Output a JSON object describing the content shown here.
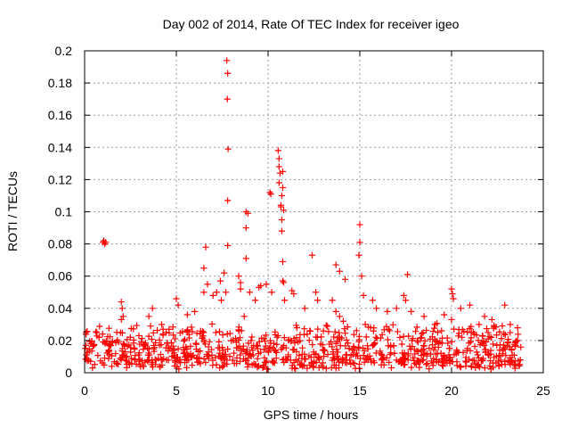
{
  "chart_data": {
    "type": "scatter",
    "title": "Day 002 of 2014, Rate Of TEC Index for receiver igeo",
    "xlabel": "GPS time / hours",
    "ylabel": "ROTI / TECUs",
    "xlim": [
      0,
      25
    ],
    "ylim": [
      0,
      0.2
    ],
    "x_ticks": [
      "0",
      "5",
      "10",
      "15",
      "20",
      "25"
    ],
    "y_ticks": [
      "0",
      "0.02",
      "0.04",
      "0.06",
      "0.08",
      "0.1",
      "0.12",
      "0.14",
      "0.16",
      "0.18",
      "0.2"
    ],
    "grid": true,
    "marker": "+",
    "color": "#ff0000",
    "series": [
      {
        "name": "ROTI",
        "points": [
          [
            1.0,
            0.081
          ],
          [
            1.05,
            0.082
          ],
          [
            1.1,
            0.08
          ],
          [
            1.15,
            0.081
          ],
          [
            2.0,
            0.044
          ],
          [
            2.05,
            0.04
          ],
          [
            2.1,
            0.035
          ],
          [
            2.0,
            0.033
          ],
          [
            3.5,
            0.035
          ],
          [
            3.7,
            0.04
          ],
          [
            4.2,
            0.03
          ],
          [
            5.0,
            0.046
          ],
          [
            5.1,
            0.042
          ],
          [
            5.6,
            0.036
          ],
          [
            6.0,
            0.038
          ],
          [
            6.5,
            0.065
          ],
          [
            6.6,
            0.078
          ],
          [
            6.7,
            0.055
          ],
          [
            6.5,
            0.05
          ],
          [
            7.0,
            0.048
          ],
          [
            7.2,
            0.05
          ],
          [
            7.4,
            0.057
          ],
          [
            7.45,
            0.045
          ],
          [
            7.75,
            0.194
          ],
          [
            7.8,
            0.186
          ],
          [
            7.78,
            0.17
          ],
          [
            7.82,
            0.139
          ],
          [
            7.8,
            0.107
          ],
          [
            7.8,
            0.079
          ],
          [
            7.6,
            0.062
          ],
          [
            7.7,
            0.05
          ],
          [
            8.4,
            0.06
          ],
          [
            8.5,
            0.056
          ],
          [
            8.5,
            0.052
          ],
          [
            8.7,
            0.035
          ],
          [
            8.8,
            0.1
          ],
          [
            8.9,
            0.099
          ],
          [
            8.8,
            0.09
          ],
          [
            8.8,
            0.071
          ],
          [
            9.0,
            0.05
          ],
          [
            9.3,
            0.045
          ],
          [
            9.5,
            0.053
          ],
          [
            9.6,
            0.054
          ],
          [
            9.9,
            0.055
          ],
          [
            10.1,
            0.112
          ],
          [
            10.15,
            0.111
          ],
          [
            10.2,
            0.05
          ],
          [
            10.55,
            0.138
          ],
          [
            10.6,
            0.133
          ],
          [
            10.6,
            0.128
          ],
          [
            10.65,
            0.124
          ],
          [
            10.6,
            0.118
          ],
          [
            10.8,
            0.125
          ],
          [
            10.8,
            0.115
          ],
          [
            10.75,
            0.11
          ],
          [
            10.7,
            0.104
          ],
          [
            10.85,
            0.101
          ],
          [
            10.7,
            0.103
          ],
          [
            10.75,
            0.095
          ],
          [
            10.75,
            0.088
          ],
          [
            10.8,
            0.069
          ],
          [
            10.85,
            0.056
          ],
          [
            10.8,
            0.057
          ],
          [
            10.9,
            0.045
          ],
          [
            11.3,
            0.051
          ],
          [
            11.4,
            0.049
          ],
          [
            12.0,
            0.04
          ],
          [
            12.4,
            0.073
          ],
          [
            12.6,
            0.05
          ],
          [
            12.7,
            0.045
          ],
          [
            13.5,
            0.045
          ],
          [
            13.7,
            0.067
          ],
          [
            13.9,
            0.063
          ],
          [
            14.2,
            0.058
          ],
          [
            13.7,
            0.038
          ],
          [
            13.9,
            0.035
          ],
          [
            14.1,
            0.032
          ],
          [
            15.0,
            0.092
          ],
          [
            15.0,
            0.081
          ],
          [
            14.95,
            0.073
          ],
          [
            15.1,
            0.06
          ],
          [
            15.2,
            0.048
          ],
          [
            15.3,
            0.03
          ],
          [
            15.7,
            0.045
          ],
          [
            15.9,
            0.04
          ],
          [
            16.5,
            0.038
          ],
          [
            17.0,
            0.04
          ],
          [
            17.4,
            0.048
          ],
          [
            17.6,
            0.061
          ],
          [
            17.5,
            0.045
          ],
          [
            17.8,
            0.038
          ],
          [
            18.5,
            0.035
          ],
          [
            19.1,
            0.03
          ],
          [
            19.6,
            0.036
          ],
          [
            20.0,
            0.052
          ],
          [
            20.05,
            0.049
          ],
          [
            20.1,
            0.046
          ],
          [
            20.0,
            0.033
          ],
          [
            20.5,
            0.04
          ],
          [
            21.0,
            0.042
          ],
          [
            21.5,
            0.03
          ],
          [
            21.8,
            0.035
          ],
          [
            22.2,
            0.033
          ],
          [
            22.9,
            0.042
          ],
          [
            23.2,
            0.03
          ],
          [
            23.6,
            0.02
          ]
        ],
        "dense_band": {
          "x_range": [
            0,
            23.8
          ],
          "y_range": [
            0.002,
            0.025
          ],
          "count": 900,
          "note": "Dense cluster of low ROTI values across the whole day"
        }
      }
    ]
  }
}
